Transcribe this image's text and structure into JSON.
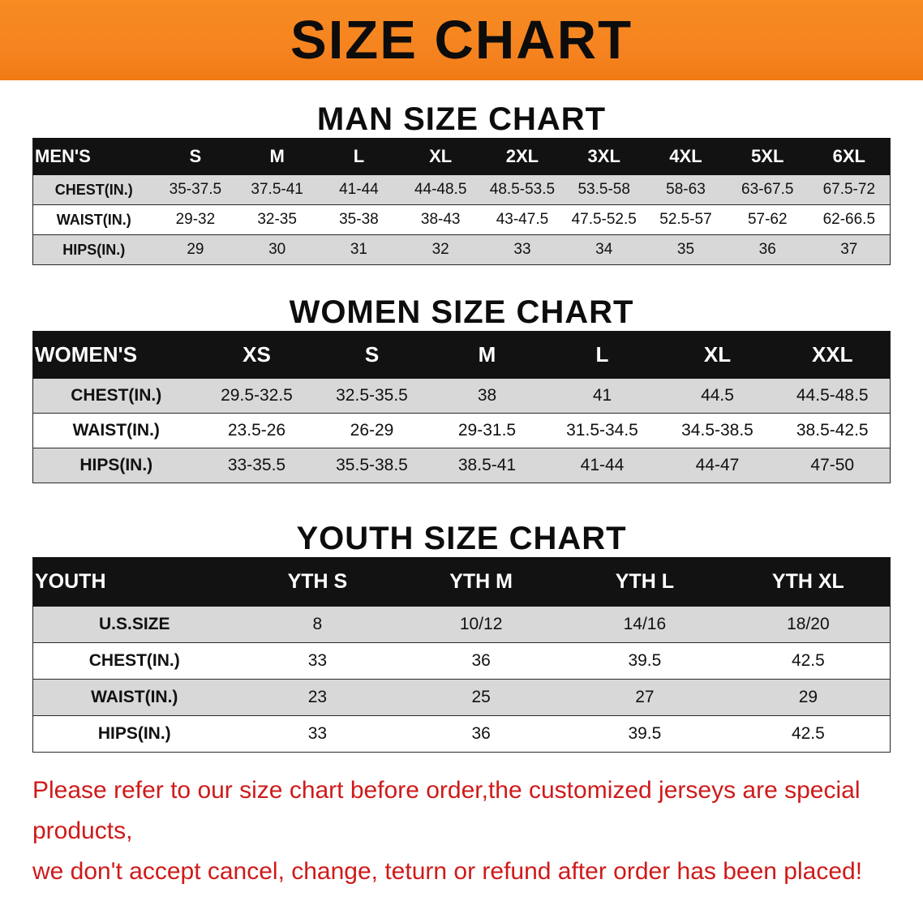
{
  "banner": {
    "title": "SIZE CHART"
  },
  "colors": {
    "banner_bg": "#f5821f",
    "table_header_bg": "#121212",
    "row_shade": "#d8d8d8",
    "disclaimer_red": "#cf1a1a"
  },
  "men": {
    "heading": "MAN SIZE CHART",
    "table": {
      "header": [
        "MEN'S",
        "S",
        "M",
        "L",
        "XL",
        "2XL",
        "3XL",
        "4XL",
        "5XL",
        "6XL"
      ],
      "rows": [
        {
          "label": "CHEST(IN.)",
          "values": [
            "35-37.5",
            "37.5-41",
            "41-44",
            "44-48.5",
            "48.5-53.5",
            "53.5-58",
            "58-63",
            "63-67.5",
            "67.5-72"
          ]
        },
        {
          "label": "WAIST(IN.)",
          "values": [
            "29-32",
            "32-35",
            "35-38",
            "38-43",
            "43-47.5",
            "47.5-52.5",
            "52.5-57",
            "57-62",
            "62-66.5"
          ]
        },
        {
          "label": "HIPS(IN.)",
          "values": [
            "29",
            "30",
            "31",
            "32",
            "33",
            "34",
            "35",
            "36",
            "37"
          ]
        }
      ]
    }
  },
  "women": {
    "heading": "WOMEN SIZE CHART",
    "table": {
      "header": [
        "WOMEN'S",
        "XS",
        "S",
        "M",
        "L",
        "XL",
        "XXL"
      ],
      "rows": [
        {
          "label": "CHEST(IN.)",
          "values": [
            "29.5-32.5",
            "32.5-35.5",
            "38",
            "41",
            "44.5",
            "44.5-48.5"
          ]
        },
        {
          "label": "WAIST(IN.)",
          "values": [
            "23.5-26",
            "26-29",
            "29-31.5",
            "31.5-34.5",
            "34.5-38.5",
            "38.5-42.5"
          ]
        },
        {
          "label": "HIPS(IN.)",
          "values": [
            "33-35.5",
            "35.5-38.5",
            "38.5-41",
            "41-44",
            "44-47",
            "47-50"
          ]
        }
      ]
    }
  },
  "youth": {
    "heading": "YOUTH SIZE CHART",
    "table": {
      "header": [
        "YOUTH",
        "YTH S",
        "YTH M",
        "YTH L",
        "YTH XL"
      ],
      "rows": [
        {
          "label": "U.S.SIZE",
          "values": [
            "8",
            "10/12",
            "14/16",
            "18/20"
          ]
        },
        {
          "label": "CHEST(IN.)",
          "values": [
            "33",
            "36",
            "39.5",
            "42.5"
          ]
        },
        {
          "label": "WAIST(IN.)",
          "values": [
            "23",
            "25",
            "27",
            "29"
          ]
        },
        {
          "label": "HIPS(IN.)",
          "values": [
            "33",
            "36",
            "39.5",
            "42.5"
          ]
        }
      ]
    }
  },
  "disclaimer": {
    "line1": "Please refer to our size chart before order,the customized jerseys are special products,",
    "line2": "we don't accept cancel, change, teturn or refund after order has been placed!"
  }
}
